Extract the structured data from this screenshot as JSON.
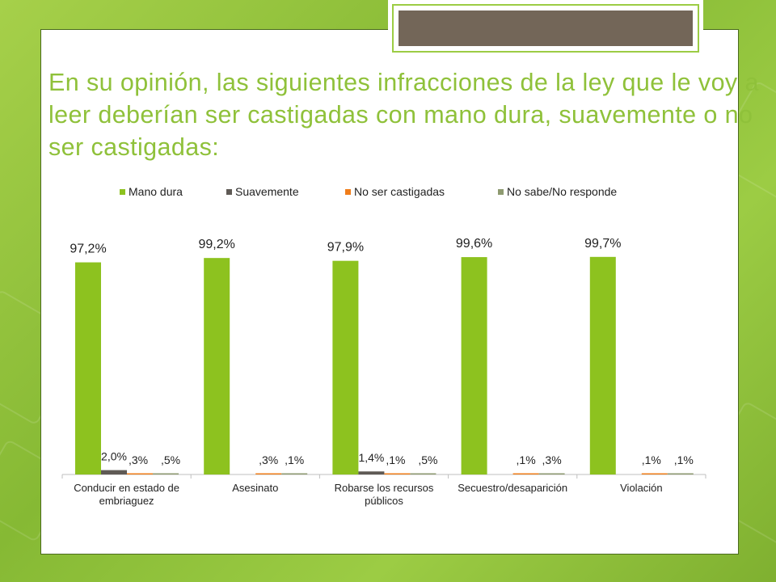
{
  "title": "En su opinión, las siguientes infracciones de la ley que le voy a leer deberían ser castigadas con mano dura, suavemente o no ser castigadas:",
  "colors": {
    "mano_dura": "#8dc21f",
    "suavemente": "#5f5a55",
    "no_castigadas": "#f07d1a",
    "ns_nr": "#8e9a70"
  },
  "chart_data": {
    "type": "bar",
    "title": "",
    "xlabel": "",
    "ylabel": "",
    "ylim": [
      0,
      100
    ],
    "grid": false,
    "legend_position": "top",
    "categories": [
      [
        "Conducir en estado de",
        "embriaguez"
      ],
      [
        "Asesinato"
      ],
      [
        "Robarse los recursos",
        "públicos"
      ],
      [
        "Secuestro/desaparición"
      ],
      [
        "Violación"
      ]
    ],
    "series": [
      {
        "name": "Mano dura",
        "color": "#8dc21f",
        "values": [
          97.2,
          99.2,
          97.9,
          99.6,
          99.7
        ],
        "labels": [
          "97,2%",
          "99,2%",
          "97,9%",
          "99,6%",
          "99,7%"
        ]
      },
      {
        "name": "Suavemente",
        "color": "#5f5a55",
        "values": [
          2.0,
          0,
          1.4,
          0,
          0
        ],
        "labels": [
          "2,0%",
          "",
          "1,4%",
          "",
          ""
        ]
      },
      {
        "name": "No ser castigadas",
        "color": "#f07d1a",
        "values": [
          0.3,
          0.3,
          0.1,
          0.1,
          0.1
        ],
        "labels": [
          ",3%",
          ",3%",
          ",1%",
          ",1%",
          ",1%"
        ]
      },
      {
        "name": "No sabe/No responde",
        "color": "#8e9a70",
        "values": [
          0.5,
          0.1,
          0.5,
          0.3,
          0.1
        ],
        "labels": [
          ",5%",
          ",1%",
          ",5%",
          ",3%",
          ",1%"
        ]
      }
    ]
  }
}
